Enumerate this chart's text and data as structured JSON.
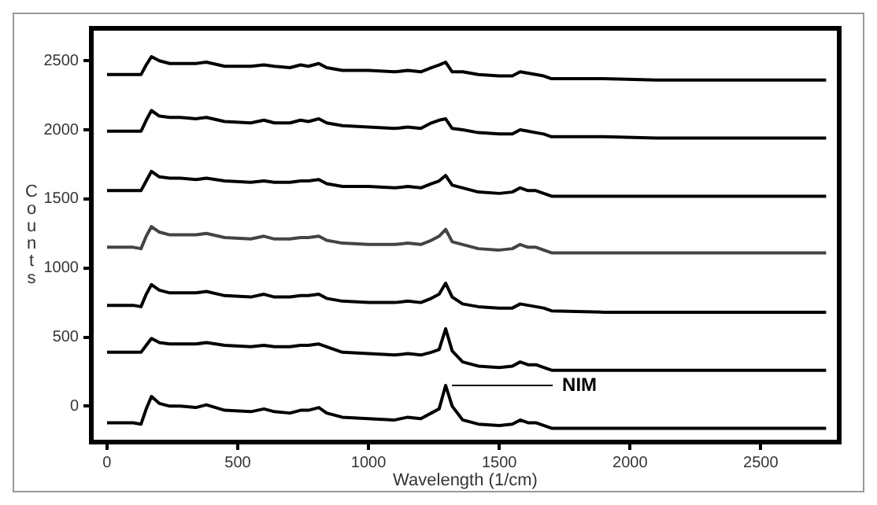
{
  "chart_data": {
    "type": "line",
    "xlabel": "Wavelength (1/cm)",
    "ylabel": "Counts",
    "marker": "none",
    "grid": false,
    "legend": false,
    "x": [
      0,
      100,
      130,
      150,
      170,
      200,
      240,
      280,
      340,
      380,
      450,
      550,
      600,
      640,
      700,
      740,
      770,
      810,
      840,
      900,
      1000,
      1100,
      1150,
      1200,
      1240,
      1270,
      1295,
      1320,
      1360,
      1420,
      1500,
      1550,
      1580,
      1610,
      1640,
      1670,
      1700,
      1900,
      2100,
      2400,
      2750
    ],
    "xlim": [
      -60,
      2800
    ],
    "xticks": [
      0,
      500,
      1000,
      1500,
      2000,
      2500
    ],
    "ylim": [
      -260,
      2735
    ],
    "yticks": [
      0,
      500,
      1000,
      1500,
      2000,
      2500
    ],
    "annotations": [
      {
        "text": "NIM",
        "x": 1295,
        "y": 150
      }
    ],
    "series": [
      {
        "color": "#000000",
        "values": [
          -120,
          -120,
          -130,
          -20,
          70,
          20,
          0,
          0,
          -10,
          10,
          -30,
          -40,
          -20,
          -40,
          -50,
          -30,
          -30,
          -10,
          -50,
          -80,
          -90,
          -100,
          -80,
          -90,
          -50,
          -20,
          150,
          0,
          -100,
          -130,
          -140,
          -130,
          -100,
          -120,
          -120,
          -140,
          -160,
          -160,
          -160,
          -160,
          -160
        ]
      },
      {
        "color": "#000000",
        "values": [
          390,
          390,
          390,
          440,
          490,
          460,
          450,
          450,
          450,
          460,
          440,
          430,
          440,
          430,
          430,
          440,
          440,
          450,
          430,
          390,
          380,
          370,
          380,
          370,
          390,
          410,
          560,
          400,
          320,
          290,
          280,
          290,
          320,
          300,
          300,
          280,
          260,
          260,
          260,
          260,
          260
        ]
      },
      {
        "color": "#000000",
        "values": [
          730,
          730,
          720,
          810,
          880,
          840,
          820,
          820,
          820,
          830,
          800,
          790,
          810,
          790,
          790,
          800,
          800,
          810,
          780,
          760,
          750,
          750,
          760,
          750,
          780,
          810,
          890,
          790,
          740,
          720,
          710,
          710,
          740,
          730,
          720,
          710,
          690,
          680,
          680,
          680,
          680
        ]
      },
      {
        "color": "#444444",
        "values": [
          1150,
          1150,
          1140,
          1230,
          1300,
          1260,
          1240,
          1240,
          1240,
          1250,
          1220,
          1210,
          1230,
          1210,
          1210,
          1220,
          1220,
          1230,
          1200,
          1180,
          1170,
          1170,
          1180,
          1170,
          1200,
          1230,
          1280,
          1190,
          1170,
          1140,
          1130,
          1140,
          1170,
          1150,
          1150,
          1130,
          1110,
          1110,
          1110,
          1110,
          1110
        ]
      },
      {
        "color": "#000000",
        "values": [
          1560,
          1560,
          1560,
          1630,
          1700,
          1660,
          1650,
          1650,
          1640,
          1650,
          1630,
          1620,
          1630,
          1620,
          1620,
          1630,
          1630,
          1640,
          1610,
          1590,
          1590,
          1580,
          1590,
          1580,
          1610,
          1630,
          1670,
          1600,
          1580,
          1550,
          1540,
          1550,
          1580,
          1560,
          1560,
          1540,
          1520,
          1520,
          1520,
          1520,
          1520
        ]
      },
      {
        "color": "#000000",
        "values": [
          1990,
          1990,
          1990,
          2070,
          2140,
          2100,
          2090,
          2090,
          2080,
          2090,
          2060,
          2050,
          2070,
          2050,
          2050,
          2070,
          2060,
          2080,
          2050,
          2030,
          2020,
          2010,
          2020,
          2010,
          2050,
          2070,
          2080,
          2010,
          2000,
          1980,
          1970,
          1970,
          2000,
          1990,
          1980,
          1970,
          1950,
          1950,
          1940,
          1940,
          1940
        ]
      },
      {
        "color": "#000000",
        "values": [
          2400,
          2400,
          2400,
          2470,
          2530,
          2500,
          2480,
          2480,
          2480,
          2490,
          2460,
          2460,
          2470,
          2460,
          2450,
          2470,
          2460,
          2480,
          2450,
          2430,
          2430,
          2420,
          2430,
          2420,
          2450,
          2470,
          2490,
          2420,
          2420,
          2400,
          2390,
          2390,
          2420,
          2410,
          2400,
          2390,
          2370,
          2370,
          2360,
          2360,
          2360
        ]
      }
    ]
  }
}
